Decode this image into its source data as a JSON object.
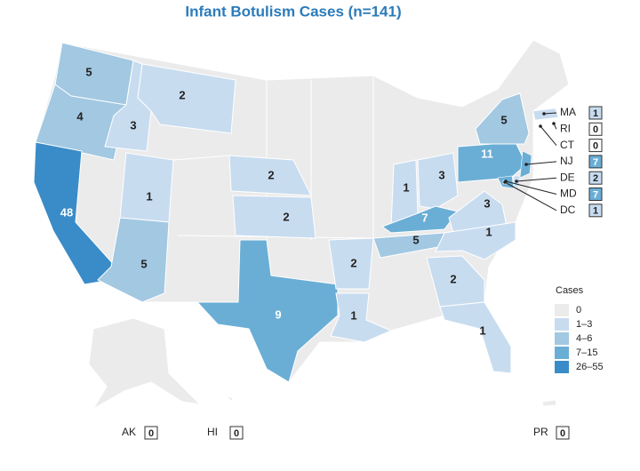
{
  "title": "Infant Botulism Cases (n=141)",
  "states": [
    {
      "value": 5,
      "color": "#a2c8e2"
    },
    {
      "value": 4,
      "color": "#a2c8e2"
    },
    {
      "value": 48,
      "color": "#3a8cc8"
    },
    {
      "value": 3,
      "color": "#c8dcf0"
    },
    {
      "value": 2,
      "color": "#c8dcf0"
    },
    {
      "value": 1,
      "color": "#c8dcf0"
    },
    {
      "value": 5,
      "color": "#a2c8e2"
    },
    {
      "value": 2,
      "color": "#c8dcf0"
    },
    {
      "value": 2,
      "color": "#c8dcf0"
    },
    {
      "value": 9,
      "color": "#6aaed6"
    },
    {
      "value": 2,
      "color": "#c8dcf0"
    },
    {
      "value": 1,
      "color": "#c8dcf0"
    },
    {
      "value": 1,
      "color": "#c8dcf0"
    },
    {
      "value": 3,
      "color": "#c8dcf0"
    },
    {
      "value": 7,
      "color": "#6aaed6"
    },
    {
      "value": 5,
      "color": "#a2c8e2"
    },
    {
      "value": 3,
      "color": "#c8dcf0"
    },
    {
      "value": 1,
      "color": "#c8dcf0"
    },
    {
      "value": 2,
      "color": "#c8dcf0"
    },
    {
      "value": 1,
      "color": "#c8dcf0"
    },
    {
      "value": 11,
      "color": "#6aaed6"
    },
    {
      "value": 5,
      "color": "#a2c8e2"
    }
  ],
  "callouts": [
    {
      "label": "MA",
      "value": 1,
      "color": "#c8dcf0"
    },
    {
      "label": "RI",
      "value": 0,
      "color": "#ffffff"
    },
    {
      "label": "CT",
      "value": 0,
      "color": "#ffffff"
    },
    {
      "label": "NJ",
      "value": 7,
      "color": "#6aaed6"
    },
    {
      "label": "DE",
      "value": 2,
      "color": "#c8dcf0"
    },
    {
      "label": "MD",
      "value": 7,
      "color": "#6aaed6"
    },
    {
      "label": "DC",
      "value": 1,
      "color": "#c8dcf0"
    }
  ],
  "territories": [
    {
      "label": "AK",
      "value": 0
    },
    {
      "label": "HI",
      "value": 0
    },
    {
      "label": "PR",
      "value": 0
    }
  ],
  "legend": {
    "title": "Cases",
    "items": [
      {
        "label": "0",
        "color": "#ebebeb"
      },
      {
        "label": "1–3",
        "color": "#c8dcf0"
      },
      {
        "label": "4–6",
        "color": "#a2c8e2"
      },
      {
        "label": "7–15",
        "color": "#6aaed6"
      },
      {
        "label": "26–55",
        "color": "#3a8cc8"
      }
    ]
  }
}
